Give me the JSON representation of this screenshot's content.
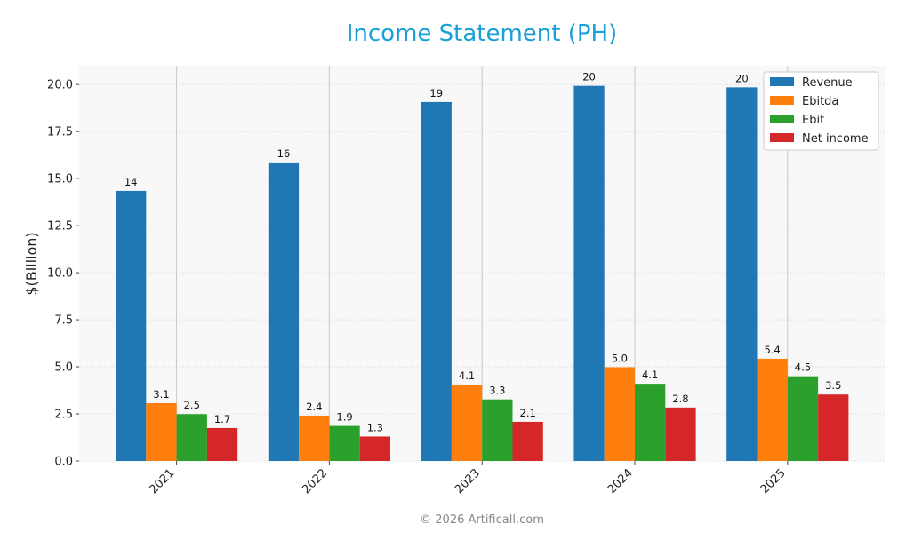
{
  "chart_data": {
    "type": "bar",
    "title": "Income Statement (PH)",
    "xlabel": "",
    "ylabel": "$(Billion)",
    "categories": [
      "2021",
      "2022",
      "2023",
      "2024",
      "2025"
    ],
    "ylim": [
      0,
      21
    ],
    "yticks": [
      "0.0",
      "2.5",
      "5.0",
      "7.5",
      "10.0",
      "12.5",
      "15.0",
      "17.5",
      "20.0"
    ],
    "grid": true,
    "legend_position": "top-right",
    "series": [
      {
        "name": "Revenue",
        "color": "#1f77b4",
        "values": [
          14.35,
          15.86,
          19.07,
          19.93,
          19.85
        ],
        "labels": [
          "14",
          "16",
          "19",
          "20",
          "20"
        ]
      },
      {
        "name": "Ebitda",
        "color": "#ff7f0e",
        "values": [
          3.07,
          2.41,
          4.06,
          4.98,
          5.43
        ],
        "labels": [
          "3.1",
          "2.4",
          "4.1",
          "5.0",
          "5.4"
        ]
      },
      {
        "name": "Ebit",
        "color": "#2ca02c",
        "values": [
          2.49,
          1.86,
          3.27,
          4.1,
          4.5
        ],
        "labels": [
          "2.5",
          "1.9",
          "3.3",
          "4.1",
          "4.5"
        ]
      },
      {
        "name": "Net income",
        "color": "#d62728",
        "values": [
          1.75,
          1.3,
          2.08,
          2.84,
          3.53
        ],
        "labels": [
          "1.7",
          "1.3",
          "2.1",
          "2.8",
          "3.5"
        ]
      }
    ]
  },
  "footer": "© 2026 Artificall.com"
}
